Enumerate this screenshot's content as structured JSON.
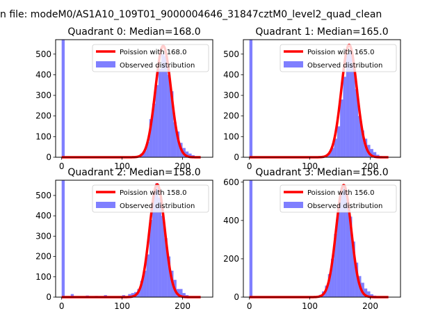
{
  "figure": {
    "suptitle": "n file: modeM0/AS1A10_109T01_9000004646_31847cztM0_level2_quad_clean"
  },
  "colors": {
    "hist": "#0000ff",
    "poisson": "#ff0000",
    "axis": "#000000",
    "background": "#ffffff"
  },
  "chart_data": [
    {
      "type": "histogram+line",
      "title": "Quadrant 0: Median=168.0",
      "xlim": [
        -10,
        250
      ],
      "ylim": [
        0,
        570
      ],
      "xticks": [
        0,
        100,
        200
      ],
      "yticks": [
        0,
        100,
        200,
        300,
        400,
        500
      ],
      "legend": {
        "placement": "top-right",
        "entries": [
          "Poission with 168.0",
          "Observed distribution"
        ]
      },
      "median": 168,
      "bin_width": 5,
      "spike": {
        "x": 0,
        "value": 570
      },
      "bins": [
        {
          "x": 125,
          "value": 8
        },
        {
          "x": 130,
          "value": 18
        },
        {
          "x": 135,
          "value": 32
        },
        {
          "x": 140,
          "value": 75
        },
        {
          "x": 145,
          "value": 185
        },
        {
          "x": 150,
          "value": 260
        },
        {
          "x": 155,
          "value": 350
        },
        {
          "x": 160,
          "value": 430
        },
        {
          "x": 165,
          "value": 500
        },
        {
          "x": 170,
          "value": 490
        },
        {
          "x": 175,
          "value": 400
        },
        {
          "x": 180,
          "value": 320
        },
        {
          "x": 185,
          "value": 170
        },
        {
          "x": 190,
          "value": 125
        },
        {
          "x": 195,
          "value": 70
        },
        {
          "x": 200,
          "value": 45
        },
        {
          "x": 205,
          "value": 28
        },
        {
          "x": 210,
          "value": 18
        },
        {
          "x": 215,
          "value": 10
        },
        {
          "x": 220,
          "value": 5
        }
      ],
      "poisson": {
        "lambda": 168.0,
        "peak": 540,
        "x_range": [
          0,
          230
        ]
      }
    },
    {
      "type": "histogram+line",
      "title": "Quadrant 1: Median=165.0",
      "xlim": [
        -10,
        250
      ],
      "ylim": [
        0,
        570
      ],
      "xticks": [
        0,
        100,
        200
      ],
      "yticks": [
        0,
        100,
        200,
        300,
        400,
        500
      ],
      "legend": {
        "placement": "top-right",
        "entries": [
          "Poission with 165.0",
          "Observed distribution"
        ]
      },
      "median": 165,
      "bin_width": 5,
      "spike": {
        "x": 0,
        "value": 570
      },
      "bins": [
        {
          "x": 120,
          "value": 5
        },
        {
          "x": 125,
          "value": 10
        },
        {
          "x": 130,
          "value": 20
        },
        {
          "x": 135,
          "value": 45
        },
        {
          "x": 140,
          "value": 90
        },
        {
          "x": 145,
          "value": 150
        },
        {
          "x": 150,
          "value": 280
        },
        {
          "x": 155,
          "value": 390
        },
        {
          "x": 160,
          "value": 500
        },
        {
          "x": 165,
          "value": 510
        },
        {
          "x": 170,
          "value": 450
        },
        {
          "x": 175,
          "value": 330
        },
        {
          "x": 180,
          "value": 200
        },
        {
          "x": 185,
          "value": 130
        },
        {
          "x": 190,
          "value": 90
        },
        {
          "x": 195,
          "value": 60
        },
        {
          "x": 200,
          "value": 40
        },
        {
          "x": 205,
          "value": 25
        },
        {
          "x": 210,
          "value": 12
        },
        {
          "x": 215,
          "value": 6
        }
      ],
      "poisson": {
        "lambda": 165.0,
        "peak": 545,
        "x_range": [
          0,
          230
        ]
      }
    },
    {
      "type": "histogram+line",
      "title": "Quadrant 2: Median=158.0",
      "xlim": [
        -10,
        250
      ],
      "ylim": [
        0,
        575
      ],
      "xticks": [
        0,
        100,
        200
      ],
      "yticks": [
        0,
        100,
        200,
        300,
        400,
        500
      ],
      "legend": {
        "placement": "top-right",
        "entries": [
          "Poission with 158.0",
          "Observed distribution"
        ]
      },
      "median": 158,
      "bin_width": 5,
      "spike": {
        "x": 0,
        "value": 575
      },
      "bins": [
        {
          "x": 15,
          "value": 15
        },
        {
          "x": 30,
          "value": 5
        },
        {
          "x": 40,
          "value": 8
        },
        {
          "x": 55,
          "value": 6
        },
        {
          "x": 70,
          "value": 10
        },
        {
          "x": 85,
          "value": 5
        },
        {
          "x": 100,
          "value": 10
        },
        {
          "x": 110,
          "value": 15
        },
        {
          "x": 115,
          "value": 20
        },
        {
          "x": 120,
          "value": 25
        },
        {
          "x": 125,
          "value": 40
        },
        {
          "x": 130,
          "value": 80
        },
        {
          "x": 135,
          "value": 130
        },
        {
          "x": 140,
          "value": 210
        },
        {
          "x": 145,
          "value": 380
        },
        {
          "x": 150,
          "value": 500
        },
        {
          "x": 155,
          "value": 560
        },
        {
          "x": 160,
          "value": 490
        },
        {
          "x": 165,
          "value": 400
        },
        {
          "x": 170,
          "value": 290
        },
        {
          "x": 175,
          "value": 200
        },
        {
          "x": 180,
          "value": 130
        },
        {
          "x": 185,
          "value": 85
        },
        {
          "x": 190,
          "value": 40
        },
        {
          "x": 195,
          "value": 40
        },
        {
          "x": 200,
          "value": 20
        },
        {
          "x": 205,
          "value": 10
        },
        {
          "x": 210,
          "value": 5
        }
      ],
      "poisson": {
        "lambda": 158.0,
        "peak": 555,
        "x_range": [
          0,
          230
        ]
      }
    },
    {
      "type": "histogram+line",
      "title": "Quadrant 3: Median=156.0",
      "xlim": [
        -10,
        250
      ],
      "ylim": [
        0,
        610
      ],
      "xticks": [
        0,
        100,
        200
      ],
      "yticks": [
        0,
        200,
        400,
        600
      ],
      "legend": {
        "placement": "top-right",
        "entries": [
          "Poission with 156.0",
          "Observed distribution"
        ]
      },
      "median": 156,
      "bin_width": 5,
      "spike": {
        "x": 0,
        "value": 610
      },
      "bins": [
        {
          "x": 110,
          "value": 5
        },
        {
          "x": 115,
          "value": 12
        },
        {
          "x": 120,
          "value": 30
        },
        {
          "x": 125,
          "value": 60
        },
        {
          "x": 130,
          "value": 120
        },
        {
          "x": 135,
          "value": 200
        },
        {
          "x": 140,
          "value": 330
        },
        {
          "x": 145,
          "value": 470
        },
        {
          "x": 150,
          "value": 550
        },
        {
          "x": 155,
          "value": 580
        },
        {
          "x": 160,
          "value": 510
        },
        {
          "x": 165,
          "value": 420
        },
        {
          "x": 170,
          "value": 290
        },
        {
          "x": 175,
          "value": 180
        },
        {
          "x": 180,
          "value": 110
        },
        {
          "x": 185,
          "value": 75
        },
        {
          "x": 190,
          "value": 45
        },
        {
          "x": 195,
          "value": 30
        },
        {
          "x": 200,
          "value": 15
        },
        {
          "x": 205,
          "value": 8
        }
      ],
      "poisson": {
        "lambda": 156.0,
        "peak": 585,
        "x_range": [
          0,
          230
        ]
      }
    }
  ]
}
